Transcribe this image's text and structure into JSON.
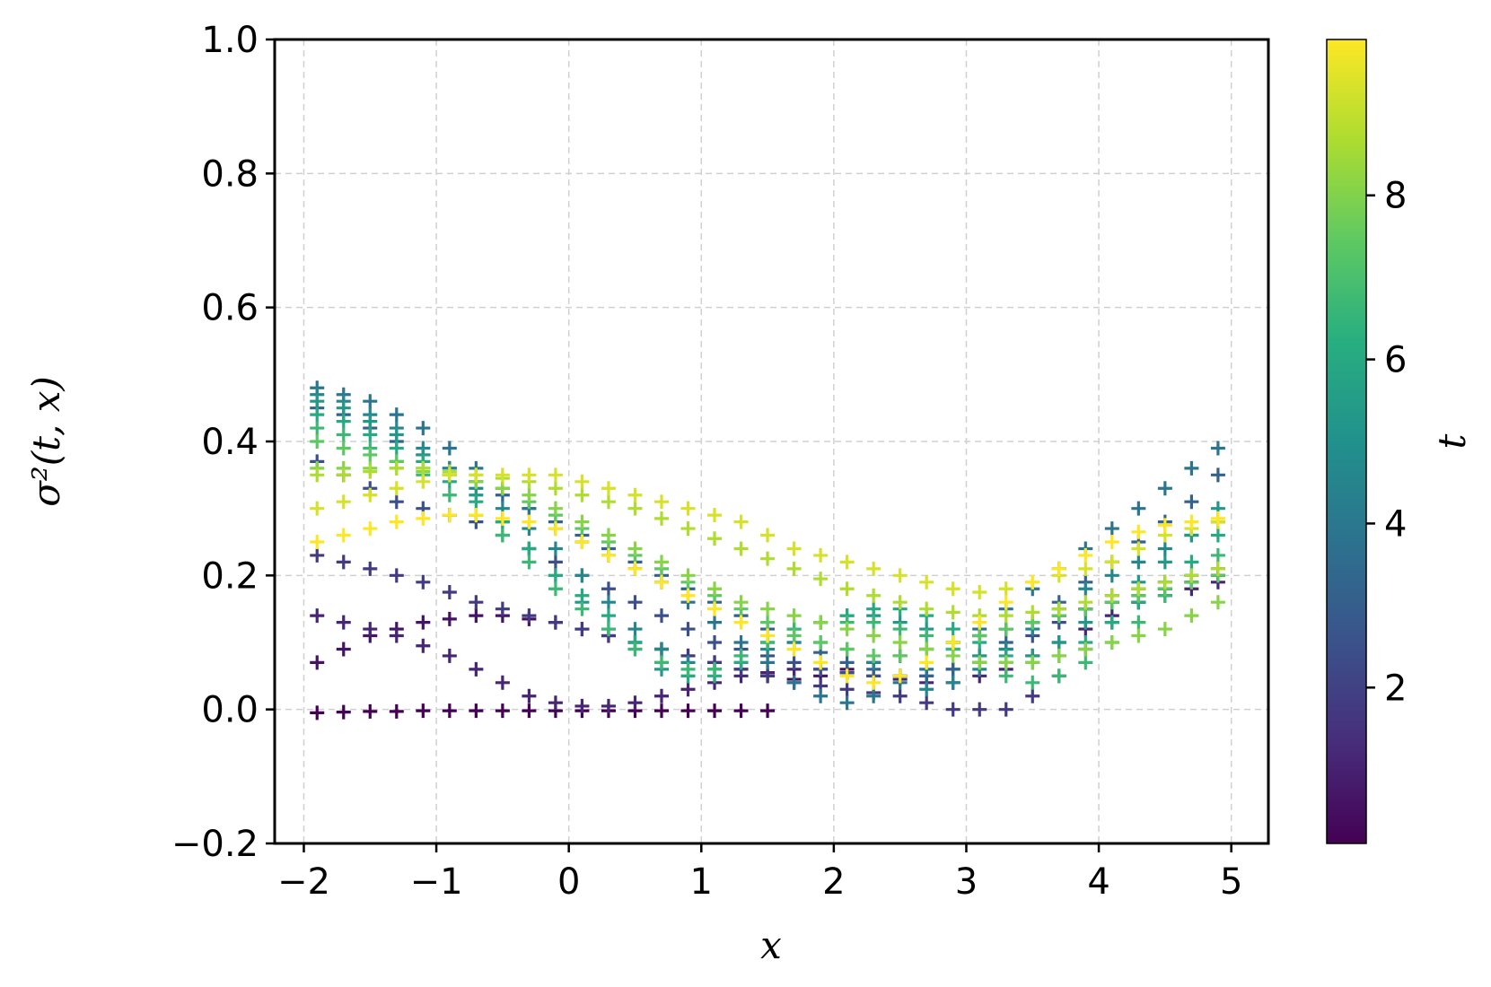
{
  "chart_data": {
    "type": "scatter",
    "marker": "plus",
    "xlabel": "x",
    "ylabel": "σ²(t, x)",
    "colorbar_label": "t",
    "colormap": "viridis",
    "xlim": [
      -2.22,
      5.28
    ],
    "ylim": [
      -0.2,
      1.0
    ],
    "xticks": [
      "−2",
      "−1",
      "0",
      "1",
      "2",
      "3",
      "4",
      "5"
    ],
    "yticks": [
      "−0.2",
      "0.0",
      "0.2",
      "0.4",
      "0.6",
      "0.8",
      "1.0"
    ],
    "color_range": [
      0.1,
      9.9
    ],
    "colorbar_ticks": [
      "2",
      "4",
      "6",
      "8"
    ],
    "grid": true,
    "series": [
      {
        "t": 0.1,
        "x": [
          -1.9,
          -1.7,
          -1.5,
          -1.3,
          -1.1,
          -0.9,
          -0.7,
          -0.5,
          -0.3,
          -0.1,
          0.1,
          0.3,
          0.5,
          0.7,
          0.9,
          1.1,
          1.3,
          1.5
        ],
        "y": [
          -0.005,
          -0.004,
          -0.003,
          -0.003,
          -0.002,
          -0.002,
          -0.002,
          -0.002,
          -0.002,
          -0.002,
          -0.002,
          -0.002,
          -0.002,
          -0.002,
          -0.002,
          -0.002,
          -0.002,
          -0.002
        ]
      },
      {
        "t": 0.6,
        "x": [
          -1.9,
          -1.7,
          -1.5,
          -1.3,
          -1.1,
          -0.9,
          -0.7,
          -0.5,
          -0.3,
          -0.1,
          0.1,
          0.3,
          0.5,
          0.7,
          0.9,
          1.1,
          1.3,
          1.5,
          1.7,
          1.9,
          2.1,
          2.3,
          2.5,
          2.7,
          2.9,
          3.1,
          3.3,
          3.5,
          3.7,
          3.9,
          4.1,
          4.3,
          4.5,
          4.7,
          4.9
        ],
        "y": [
          0.07,
          0.09,
          0.11,
          0.12,
          0.13,
          0.135,
          0.14,
          0.14,
          0.135,
          0.13,
          0.12,
          0.11,
          0.1,
          0.09,
          0.08,
          0.07,
          0.06,
          0.05,
          0.045,
          0.05,
          0.06,
          0.07,
          0.08,
          0.09,
          0.1,
          0.11,
          0.12,
          0.13,
          0.14,
          0.15,
          0.16,
          0.17,
          0.18,
          0.19,
          0.2
        ]
      },
      {
        "t": 1.1,
        "x": [
          -1.9,
          -1.7,
          -1.5,
          -1.3,
          -1.1,
          -0.9,
          -0.7,
          -0.5,
          -0.3,
          -0.1,
          0.1,
          0.3,
          0.5,
          0.7,
          0.9,
          1.1,
          1.3,
          1.5,
          1.7,
          1.9,
          2.1,
          2.3,
          2.5,
          2.7,
          2.9,
          3.1,
          3.3,
          3.5,
          3.7,
          3.9,
          4.1,
          4.3,
          4.5,
          4.7,
          4.9
        ],
        "y": [
          0.14,
          0.13,
          0.12,
          0.11,
          0.095,
          0.08,
          0.06,
          0.04,
          0.02,
          0.01,
          0.005,
          0.005,
          0.01,
          0.02,
          0.03,
          0.04,
          0.05,
          0.055,
          0.06,
          0.06,
          0.055,
          0.05,
          0.045,
          0.04,
          0.04,
          0.05,
          0.06,
          0.08,
          0.1,
          0.12,
          0.14,
          0.16,
          0.17,
          0.18,
          0.19
        ]
      },
      {
        "t": 1.8,
        "x": [
          -1.9,
          -1.7,
          -1.5,
          -1.3,
          -1.1,
          -0.9,
          -0.7,
          -0.5,
          -0.3,
          -0.1,
          0.1,
          0.3,
          0.5,
          0.7,
          0.9,
          1.1,
          1.3,
          1.5,
          1.7,
          1.9,
          2.1,
          2.3,
          2.5,
          2.7,
          2.9,
          3.1,
          3.3,
          3.5,
          3.7,
          3.9,
          4.1,
          4.3,
          4.5,
          4.7,
          4.9
        ],
        "y": [
          0.23,
          0.22,
          0.21,
          0.2,
          0.19,
          0.175,
          0.16,
          0.15,
          0.14,
          0.13,
          0.12,
          0.11,
          0.1,
          0.09,
          0.08,
          0.07,
          0.06,
          0.05,
          0.04,
          0.035,
          0.03,
          0.025,
          0.02,
          0.01,
          0.0,
          0.0,
          0.0,
          0.02,
          0.05,
          0.09,
          0.13,
          0.16,
          0.18,
          0.19,
          0.2
        ]
      },
      {
        "t": 2.5,
        "x": [
          -1.9,
          -1.7,
          -1.5,
          -1.3,
          -1.1,
          -0.9,
          -0.7,
          -0.5,
          -0.3,
          -0.1,
          0.1,
          0.3,
          0.5,
          0.7,
          0.9,
          1.1,
          1.3,
          1.5,
          1.7,
          1.9,
          2.1,
          2.3,
          2.5,
          2.7,
          2.9,
          3.1,
          3.3,
          3.5,
          3.7,
          3.9,
          4.1,
          4.3,
          4.5,
          4.7,
          4.9
        ],
        "y": [
          0.37,
          0.35,
          0.33,
          0.31,
          0.3,
          0.29,
          0.28,
          0.26,
          0.24,
          0.22,
          0.2,
          0.18,
          0.16,
          0.14,
          0.12,
          0.1,
          0.09,
          0.08,
          0.07,
          0.06,
          0.055,
          0.05,
          0.05,
          0.05,
          0.06,
          0.07,
          0.09,
          0.11,
          0.13,
          0.15,
          0.17,
          0.18,
          0.19,
          0.2,
          0.21
        ]
      },
      {
        "t": 3.2,
        "x": [
          -1.9,
          -1.7,
          -1.5,
          -1.3,
          -1.1,
          -0.9,
          -0.7,
          -0.5,
          -0.3,
          -0.1,
          0.1,
          0.3,
          0.5,
          0.7,
          0.9,
          1.1,
          1.3,
          1.5,
          1.7,
          1.9,
          2.1,
          2.3,
          2.5,
          2.7,
          2.9,
          3.1,
          3.3,
          3.5,
          3.7,
          3.9,
          4.1,
          4.3,
          4.5,
          4.7,
          4.9
        ],
        "y": [
          0.45,
          0.44,
          0.42,
          0.4,
          0.38,
          0.36,
          0.34,
          0.32,
          0.3,
          0.28,
          0.26,
          0.24,
          0.22,
          0.2,
          0.18,
          0.16,
          0.14,
          0.12,
          0.1,
          0.085,
          0.07,
          0.06,
          0.05,
          0.05,
          0.06,
          0.08,
          0.1,
          0.13,
          0.16,
          0.19,
          0.22,
          0.25,
          0.28,
          0.31,
          0.35
        ]
      },
      {
        "t": 3.9,
        "x": [
          -1.9,
          -1.7,
          -1.5,
          -1.3,
          -1.1,
          -0.9,
          -0.7,
          -0.5,
          -0.3,
          -0.1,
          0.1,
          0.3,
          0.5,
          0.7,
          0.9,
          1.1,
          1.3,
          1.5,
          1.7,
          1.9,
          2.1,
          2.3,
          2.5,
          2.7,
          2.9,
          3.1,
          3.3,
          3.5,
          3.7,
          3.9,
          4.1,
          4.3,
          4.5,
          4.7,
          4.9
        ],
        "y": [
          0.48,
          0.47,
          0.46,
          0.44,
          0.42,
          0.39,
          0.36,
          0.33,
          0.3,
          0.27,
          0.25,
          0.23,
          0.21,
          0.19,
          0.16,
          0.13,
          0.1,
          0.07,
          0.04,
          0.02,
          0.01,
          0.02,
          0.04,
          0.06,
          0.09,
          0.12,
          0.15,
          0.18,
          0.21,
          0.24,
          0.27,
          0.3,
          0.33,
          0.36,
          0.39
        ]
      },
      {
        "t": 4.6,
        "x": [
          -1.9,
          -1.7,
          -1.5,
          -1.3,
          -1.1,
          -0.9,
          -0.7,
          -0.5,
          -0.3,
          -0.1,
          0.1,
          0.3,
          0.5,
          0.7,
          0.9,
          1.1,
          1.3,
          1.5,
          1.7,
          1.9,
          2.1,
          2.3,
          2.5,
          2.7,
          2.9,
          3.1,
          3.3,
          3.5,
          3.7,
          3.9,
          4.1,
          4.3,
          4.5,
          4.7,
          4.9
        ],
        "y": [
          0.47,
          0.46,
          0.44,
          0.42,
          0.39,
          0.36,
          0.33,
          0.3,
          0.27,
          0.24,
          0.2,
          0.16,
          0.12,
          0.09,
          0.07,
          0.06,
          0.07,
          0.09,
          0.1,
          0.1,
          0.09,
          0.07,
          0.05,
          0.03,
          0.04,
          0.06,
          0.09,
          0.12,
          0.15,
          0.18,
          0.2,
          0.22,
          0.24,
          0.26,
          0.28
        ]
      },
      {
        "t": 5.3,
        "x": [
          -1.9,
          -1.7,
          -1.5,
          -1.3,
          -1.1,
          -0.9,
          -0.7,
          -0.5,
          -0.3,
          -0.1,
          0.1,
          0.3,
          0.5,
          0.7,
          0.9,
          1.1,
          1.3,
          1.5,
          1.7,
          1.9,
          2.1,
          2.3,
          2.5,
          2.7,
          2.9,
          3.1,
          3.3,
          3.5,
          3.7,
          3.9,
          4.1,
          4.3,
          4.5,
          4.7,
          4.9
        ],
        "y": [
          0.46,
          0.45,
          0.43,
          0.41,
          0.38,
          0.35,
          0.32,
          0.28,
          0.24,
          0.2,
          0.16,
          0.12,
          0.09,
          0.06,
          0.05,
          0.06,
          0.08,
          0.1,
          0.12,
          0.13,
          0.14,
          0.14,
          0.13,
          0.12,
          0.1,
          0.08,
          0.07,
          0.08,
          0.1,
          0.13,
          0.16,
          0.19,
          0.22,
          0.26,
          0.3
        ]
      },
      {
        "t": 6.0,
        "x": [
          -1.9,
          -1.7,
          -1.5,
          -1.3,
          -1.1,
          -0.9,
          -0.7,
          -0.5,
          -0.3,
          -0.1,
          0.1,
          0.3,
          0.5,
          0.7,
          0.9,
          1.1,
          1.3,
          1.5,
          1.7,
          1.9,
          2.1,
          2.3,
          2.5,
          2.7,
          2.9,
          3.1,
          3.3,
          3.5,
          3.7,
          3.9,
          4.1,
          4.3,
          4.5,
          4.7,
          4.9
        ],
        "y": [
          0.44,
          0.43,
          0.41,
          0.39,
          0.37,
          0.34,
          0.31,
          0.28,
          0.24,
          0.2,
          0.17,
          0.14,
          0.1,
          0.07,
          0.05,
          0.05,
          0.07,
          0.1,
          0.12,
          0.13,
          0.14,
          0.15,
          0.15,
          0.14,
          0.12,
          0.1,
          0.08,
          0.07,
          0.08,
          0.1,
          0.13,
          0.16,
          0.19,
          0.22,
          0.26
        ]
      },
      {
        "t": 6.7,
        "x": [
          -1.9,
          -1.7,
          -1.5,
          -1.3,
          -1.1,
          -0.9,
          -0.7,
          -0.5,
          -0.3,
          -0.1,
          0.1,
          0.3,
          0.5,
          0.7,
          0.9,
          1.1,
          1.3,
          1.5,
          1.7,
          1.9,
          2.1,
          2.3,
          2.5,
          2.7,
          2.9,
          3.1,
          3.3,
          3.5,
          3.7,
          3.9,
          4.1,
          4.3,
          4.5,
          4.7,
          4.9
        ],
        "y": [
          0.42,
          0.41,
          0.39,
          0.37,
          0.35,
          0.32,
          0.29,
          0.26,
          0.22,
          0.18,
          0.15,
          0.12,
          0.09,
          0.07,
          0.06,
          0.06,
          0.08,
          0.1,
          0.12,
          0.13,
          0.13,
          0.13,
          0.12,
          0.11,
          0.09,
          0.07,
          0.05,
          0.04,
          0.05,
          0.07,
          0.1,
          0.13,
          0.17,
          0.2,
          0.23
        ]
      },
      {
        "t": 7.4,
        "x": [
          -1.9,
          -1.7,
          -1.5,
          -1.3,
          -1.1,
          -0.9,
          -0.7,
          -0.5,
          -0.3,
          -0.1,
          0.1,
          0.3,
          0.5,
          0.7,
          0.9,
          1.1,
          1.3,
          1.5,
          1.7,
          1.9,
          2.1,
          2.3,
          2.5,
          2.7,
          2.9,
          3.1,
          3.3,
          3.5,
          3.7,
          3.9,
          4.1,
          4.3,
          4.5,
          4.7,
          4.9
        ],
        "y": [
          0.4,
          0.39,
          0.38,
          0.37,
          0.36,
          0.35,
          0.34,
          0.33,
          0.31,
          0.29,
          0.27,
          0.25,
          0.23,
          0.21,
          0.19,
          0.17,
          0.15,
          0.13,
          0.11,
          0.1,
          0.09,
          0.08,
          0.08,
          0.09,
          0.1,
          0.11,
          0.12,
          0.13,
          0.14,
          0.15,
          0.16,
          0.17,
          0.18,
          0.19,
          0.2
        ]
      },
      {
        "t": 8.1,
        "x": [
          -1.9,
          -1.7,
          -1.5,
          -1.3,
          -1.1,
          -0.9,
          -0.7,
          -0.5,
          -0.3,
          -0.1,
          0.1,
          0.3,
          0.5,
          0.7,
          0.9,
          1.1,
          1.3,
          1.5,
          1.7,
          1.9,
          2.1,
          2.3,
          2.5,
          2.7,
          2.9,
          3.1,
          3.3,
          3.5,
          3.7,
          3.9,
          4.1,
          4.3,
          4.5,
          4.7,
          4.9
        ],
        "y": [
          0.36,
          0.36,
          0.36,
          0.36,
          0.355,
          0.35,
          0.34,
          0.33,
          0.32,
          0.3,
          0.28,
          0.26,
          0.24,
          0.22,
          0.2,
          0.18,
          0.16,
          0.15,
          0.14,
          0.13,
          0.12,
          0.11,
          0.1,
          0.09,
          0.08,
          0.07,
          0.07,
          0.07,
          0.08,
          0.09,
          0.1,
          0.11,
          0.12,
          0.14,
          0.16
        ]
      },
      {
        "t": 8.7,
        "x": [
          -1.9,
          -1.7,
          -1.5,
          -1.3,
          -1.1,
          -0.9,
          -0.7,
          -0.5,
          -0.3,
          -0.1,
          0.1,
          0.3,
          0.5,
          0.7,
          0.9,
          1.1,
          1.3,
          1.5,
          1.7,
          1.9,
          2.1,
          2.3,
          2.5,
          2.7,
          2.9,
          3.1,
          3.3,
          3.5,
          3.7,
          3.9,
          4.1,
          4.3,
          4.5,
          4.7,
          4.9
        ],
        "y": [
          0.35,
          0.35,
          0.355,
          0.36,
          0.36,
          0.355,
          0.35,
          0.345,
          0.34,
          0.33,
          0.32,
          0.31,
          0.3,
          0.285,
          0.27,
          0.255,
          0.24,
          0.225,
          0.21,
          0.195,
          0.18,
          0.17,
          0.16,
          0.15,
          0.145,
          0.14,
          0.14,
          0.145,
          0.15,
          0.16,
          0.17,
          0.18,
          0.19,
          0.2,
          0.21
        ]
      },
      {
        "t": 9.3,
        "x": [
          -1.9,
          -1.7,
          -1.5,
          -1.3,
          -1.1,
          -0.9,
          -0.7,
          -0.5,
          -0.3,
          -0.1,
          0.1,
          0.3,
          0.5,
          0.7,
          0.9,
          1.1,
          1.3,
          1.5,
          1.7,
          1.9,
          2.1,
          2.3,
          2.5,
          2.7,
          2.9,
          3.1,
          3.3,
          3.5,
          3.7,
          3.9,
          4.1,
          4.3,
          4.5,
          4.7,
          4.9
        ],
        "y": [
          0.3,
          0.31,
          0.32,
          0.33,
          0.34,
          0.35,
          0.35,
          0.35,
          0.35,
          0.35,
          0.34,
          0.33,
          0.32,
          0.31,
          0.3,
          0.29,
          0.28,
          0.26,
          0.24,
          0.23,
          0.22,
          0.21,
          0.2,
          0.19,
          0.18,
          0.175,
          0.18,
          0.19,
          0.2,
          0.21,
          0.22,
          0.24,
          0.26,
          0.27,
          0.28
        ]
      },
      {
        "t": 9.9,
        "x": [
          -1.9,
          -1.7,
          -1.5,
          -1.3,
          -1.1,
          -0.9,
          -0.7,
          -0.5,
          -0.3,
          -0.1,
          0.1,
          0.3,
          0.5,
          0.7,
          0.9,
          1.1,
          1.3,
          1.5,
          1.7,
          1.9,
          2.1,
          2.3,
          2.5,
          2.7,
          2.9,
          3.1,
          3.3,
          3.5,
          3.7,
          3.9,
          4.1,
          4.3,
          4.5,
          4.7,
          4.9
        ],
        "y": [
          0.25,
          0.26,
          0.27,
          0.28,
          0.285,
          0.29,
          0.29,
          0.285,
          0.28,
          0.27,
          0.25,
          0.23,
          0.21,
          0.19,
          0.17,
          0.15,
          0.13,
          0.11,
          0.09,
          0.07,
          0.05,
          0.04,
          0.05,
          0.07,
          0.1,
          0.13,
          0.16,
          0.19,
          0.21,
          0.23,
          0.25,
          0.265,
          0.275,
          0.28,
          0.285
        ]
      }
    ]
  }
}
